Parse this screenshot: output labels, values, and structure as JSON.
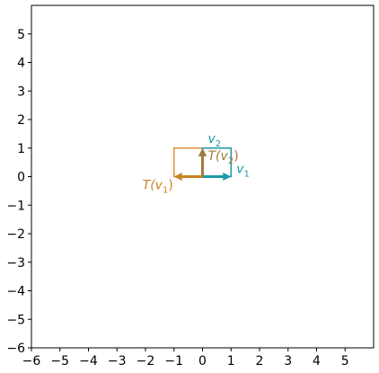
{
  "chart_data": {
    "type": "vector-plot",
    "xlim": [
      -6,
      6
    ],
    "ylim": [
      -6,
      6
    ],
    "x_ticks": [
      -6,
      -5,
      -4,
      -3,
      -2,
      -1,
      0,
      1,
      2,
      3,
      4,
      5
    ],
    "y_ticks": [
      -6,
      -5,
      -4,
      -3,
      -2,
      -1,
      0,
      1,
      2,
      3,
      4,
      5
    ],
    "x_tick_labels": [
      "−6",
      "−5",
      "−4",
      "−3",
      "−2",
      "−1",
      "0",
      "1",
      "2",
      "3",
      "4",
      "5"
    ],
    "y_tick_labels": [
      "−6",
      "−5",
      "−4",
      "−3",
      "−2",
      "−1",
      "0",
      "1",
      "2",
      "3",
      "4",
      "5"
    ],
    "grid": false,
    "unit_square": {
      "corners": [
        [
          0,
          0
        ],
        [
          1,
          0
        ],
        [
          1,
          1
        ],
        [
          0,
          1
        ]
      ],
      "color": "#1a9aaa"
    },
    "transformed_square": {
      "corners": [
        [
          0,
          0
        ],
        [
          -1,
          0
        ],
        [
          -1,
          1
        ],
        [
          0,
          1
        ]
      ],
      "color": "#d9923a"
    },
    "vectors": [
      {
        "name": "v_1",
        "label_base": "v",
        "label_sub": "1",
        "from": [
          0,
          0
        ],
        "to": [
          1,
          0
        ],
        "color": "#1a9aaa"
      },
      {
        "name": "v_2",
        "label_base": "v",
        "label_sub": "2",
        "from": [
          0,
          0
        ],
        "to": [
          0,
          1
        ],
        "color": "#1a9aaa"
      },
      {
        "name": "T(v_1)",
        "label_base": "T(v",
        "label_sub": "1",
        "label_close": ")",
        "from": [
          0,
          0
        ],
        "to": [
          -1,
          0
        ],
        "color": "#c8831f"
      },
      {
        "name": "T(v_2)",
        "label_base": "T(v",
        "label_sub": "2",
        "label_close": ")",
        "from": [
          0,
          0
        ],
        "to": [
          0,
          1
        ],
        "color": "#a07a3a"
      }
    ]
  }
}
